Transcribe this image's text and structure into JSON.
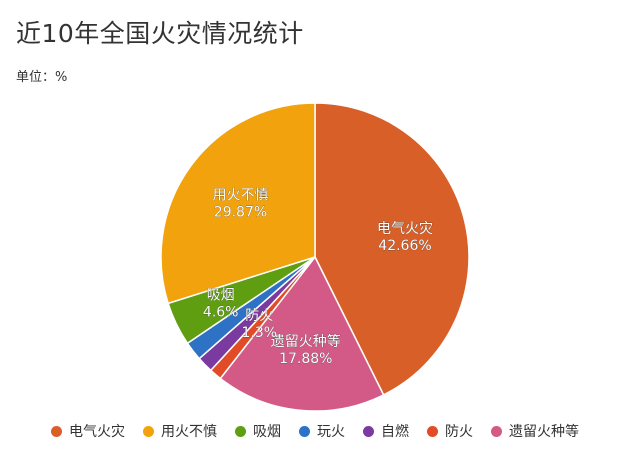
{
  "title": "近10年全国火灾情况统计",
  "unit_label": "单位：%",
  "chart_data": {
    "type": "pie",
    "title": "近10年全国火灾情况统计",
    "unit": "%",
    "categories": [
      "电气火灾",
      "用火不慎",
      "吸烟",
      "玩火",
      "自燃",
      "防火",
      "遗留火种等"
    ],
    "values": [
      42.66,
      29.87,
      4.6,
      2.0,
      1.7,
      1.3,
      17.88
    ],
    "slices": [
      {
        "label": "电气火灾",
        "value": 42.66,
        "color": "#d95f29",
        "value_label": "42.66%",
        "show_label": true
      },
      {
        "label": "遗留火种等",
        "value": 17.88,
        "color": "#d35a87",
        "value_label": "17.88%",
        "show_label": true
      },
      {
        "label": "防火",
        "value": 1.3,
        "color": "#e14b28",
        "value_label": "1.3%",
        "show_label": true
      },
      {
        "label": "自燃",
        "value": 1.7,
        "color": "#7b3a9f",
        "show_label": false
      },
      {
        "label": "玩火",
        "value": 2.0,
        "color": "#2d72c4",
        "show_label": false
      },
      {
        "label": "吸烟",
        "value": 4.6,
        "color": "#5f9e10",
        "value_label": "4.6%",
        "show_label": true
      },
      {
        "label": "用火不慎",
        "value": 29.87,
        "color": "#f2a20c",
        "value_label": "29.87%",
        "show_label": true
      }
    ],
    "legend": {
      "position": "bottom",
      "items": [
        {
          "label": "电气火灾",
          "color": "#d95f29"
        },
        {
          "label": "用火不慎",
          "color": "#f2a20c"
        },
        {
          "label": "吸烟",
          "color": "#5f9e10"
        },
        {
          "label": "玩火",
          "color": "#2d72c4"
        },
        {
          "label": "自燃",
          "color": "#7b3a9f"
        },
        {
          "label": "防火",
          "color": "#e14b28"
        },
        {
          "label": "遗留火种等",
          "color": "#d35a87"
        }
      ]
    }
  }
}
